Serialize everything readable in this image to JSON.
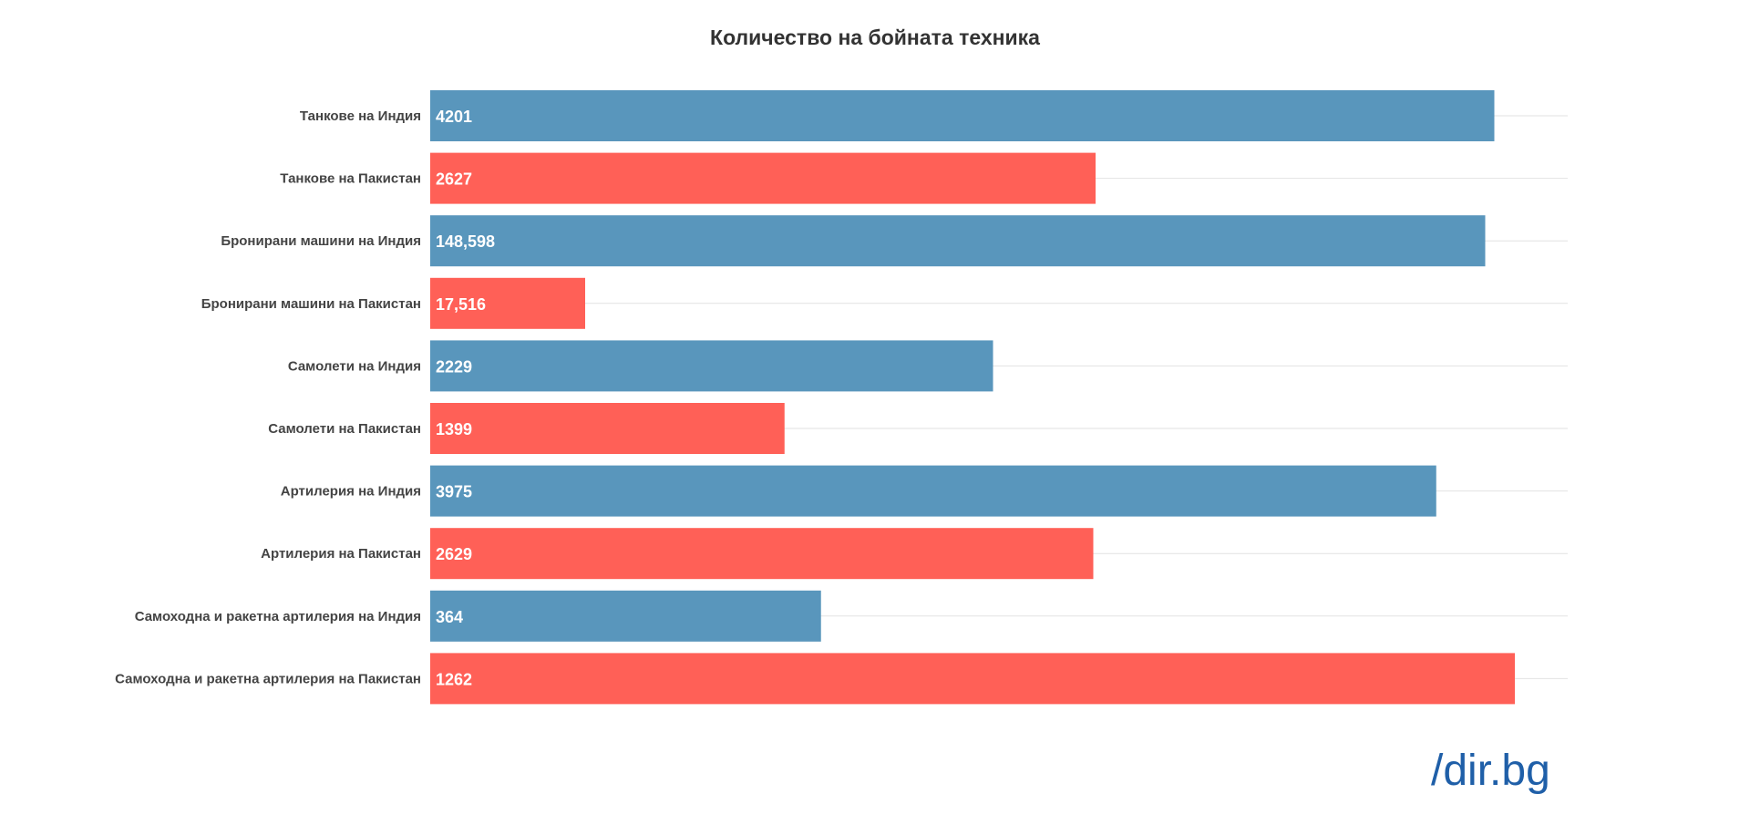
{
  "chart_data": {
    "type": "bar",
    "orientation": "horizontal",
    "title": "Количество на бойната техника",
    "categories": [
      "Танкове на Индия",
      "Танкове на Пакистан",
      "Бронирани машини на Индия",
      "Бронирани машини на Пакистан",
      "Самолети на Индия",
      "Самолети на Пакистан",
      "Артилерия на Индия",
      "Артилерия на Пакистан",
      "Самоходна и ракетна артилерия на Индия",
      "Самоходна и ракетна артилерия на Пакистан"
    ],
    "values": [
      4201,
      2627,
      148598,
      17516,
      2229,
      1399,
      3975,
      2629,
      364,
      1262
    ],
    "value_labels": [
      "4201",
      "2627",
      "148,598",
      "17,516",
      "2229",
      "1399",
      "3975",
      "2629",
      "364",
      "1262"
    ],
    "relative_lengths": [
      0.934,
      0.584,
      0.926,
      0.136,
      0.494,
      0.311,
      0.883,
      0.582,
      0.343,
      0.952
    ],
    "bar_colors": [
      "#5996bc",
      "#ff6057",
      "#5996bc",
      "#ff6057",
      "#5996bc",
      "#ff6057",
      "#5996bc",
      "#ff6057",
      "#5996bc",
      "#ff6057"
    ],
    "grid": true,
    "legend": "none"
  },
  "logo": {
    "text": "/dir.bg",
    "color": "#1f5fa8"
  }
}
